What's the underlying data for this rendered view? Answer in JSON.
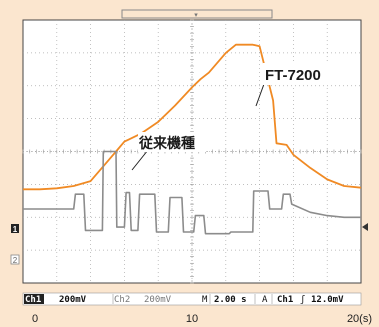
{
  "chart_data": {
    "type": "line",
    "x_tick_labels": [
      "0",
      "10",
      "20(s)"
    ],
    "xlim": [
      0,
      20
    ],
    "ylim": [
      -4,
      4
    ],
    "series": [
      {
        "name": "FT-7200",
        "color": "#f08a24",
        "x": [
          0,
          1,
          2,
          3,
          4,
          5,
          5.5,
          6,
          7,
          8,
          9,
          10,
          10.5,
          11,
          12,
          12.6,
          13.6,
          14,
          14.8,
          15,
          15.6,
          16,
          17,
          18,
          19,
          20
        ],
        "y": [
          -1.15,
          -1.15,
          -1.12,
          -1.05,
          -0.9,
          -0.3,
          0.0,
          0.3,
          0.55,
          0.9,
          1.4,
          1.95,
          2.2,
          2.4,
          3.0,
          3.25,
          3.25,
          3.2,
          1.55,
          0.25,
          0.2,
          -0.1,
          -0.5,
          -0.85,
          -1.05,
          -1.1
        ]
      },
      {
        "name": "従来機種",
        "color": "#8c8c8c",
        "x": [
          0,
          3.0,
          3.1,
          3.6,
          3.7,
          4.7,
          4.75,
          5.5,
          5.55,
          6.0,
          6.1,
          6.3,
          6.4,
          6.8,
          6.9,
          7.8,
          7.9,
          8.6,
          8.7,
          9.4,
          9.5,
          10.1,
          10.2,
          10.7,
          10.8,
          12.2,
          12.3,
          13.6,
          13.65,
          14.5,
          14.6,
          15.3,
          15.4,
          15.8,
          15.9,
          17,
          18,
          19,
          20
        ],
        "y": [
          -1.75,
          -1.75,
          -1.3,
          -1.3,
          -2.4,
          -2.4,
          0.0,
          0.0,
          -2.3,
          -2.3,
          -1.25,
          -1.25,
          -2.4,
          -2.4,
          -1.3,
          -1.3,
          -2.45,
          -2.45,
          -1.4,
          -1.4,
          -2.45,
          -2.45,
          -1.95,
          -1.95,
          -2.5,
          -2.5,
          -2.45,
          -2.45,
          -1.2,
          -1.2,
          -1.75,
          -1.75,
          -1.3,
          -1.3,
          -1.6,
          -1.85,
          -1.95,
          -2.0,
          -2.0
        ]
      }
    ],
    "annotations": [
      "FT-7200",
      "従来機種"
    ]
  },
  "scope": {
    "status_bar": {
      "ch1_tag": "Ch1",
      "ch1_scale": "200mV",
      "ch2_tag": "Ch2",
      "ch2_scale": "200mV",
      "timebase_tag": "M",
      "timebase": "2.00 s",
      "trigger_mode": "A",
      "trigger_source": "Ch1",
      "trigger_slope": "ʃ",
      "trigger_level": "12.0mV"
    },
    "channel_markers": [
      "1",
      "2"
    ]
  },
  "colors": {
    "screen_bg": "#ffffff",
    "grid": "#aaaaaa",
    "frame": "#444444"
  }
}
